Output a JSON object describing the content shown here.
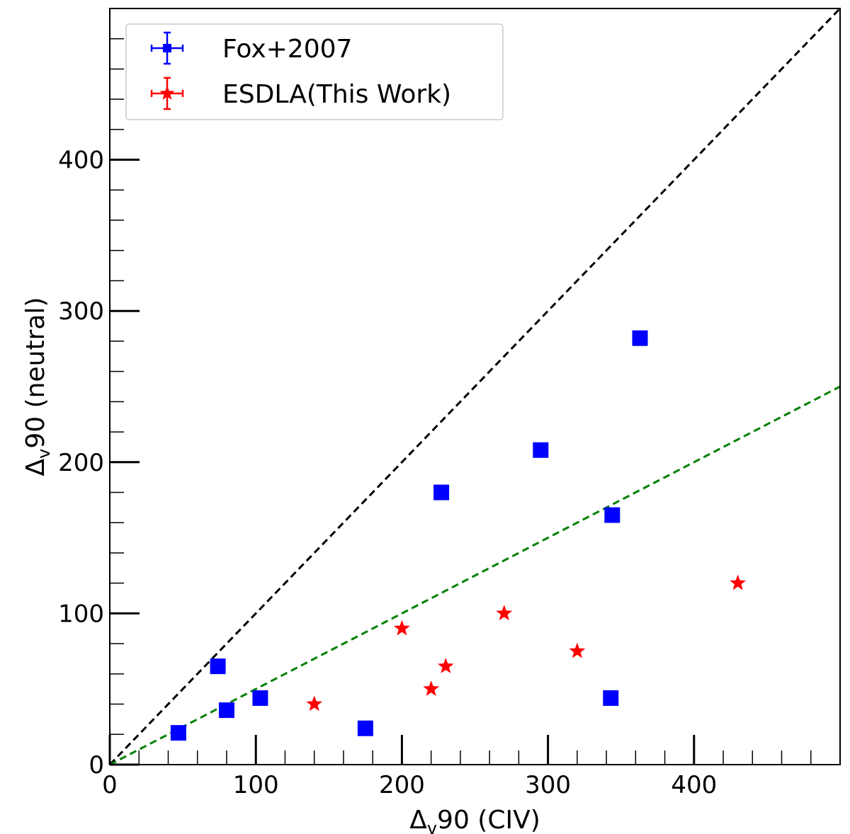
{
  "chart_data": {
    "type": "scatter",
    "xlim": [
      0,
      500
    ],
    "ylim": [
      0,
      500
    ],
    "xlabel": {
      "main": "Δ",
      "sub": "v",
      "rest": "90 (CIV)"
    },
    "ylabel": {
      "main": "Δ",
      "sub": "v",
      "rest": "90 (neutral)"
    },
    "x_ticks": [
      {
        "value": 0,
        "label": "0"
      },
      {
        "value": 100,
        "label": "100"
      },
      {
        "value": 200,
        "label": "200"
      },
      {
        "value": 300,
        "label": "300"
      },
      {
        "value": 400,
        "label": "400"
      }
    ],
    "y_ticks": [
      {
        "value": 0,
        "label": "0"
      },
      {
        "value": 100,
        "label": "100"
      },
      {
        "value": 200,
        "label": "200"
      },
      {
        "value": 300,
        "label": "300"
      },
      {
        "value": 400,
        "label": "400"
      }
    ],
    "minor_tick_step": 20,
    "grid": false,
    "legend": {
      "placement": "top-left",
      "entries": [
        {
          "label": "Fox+2007",
          "series_index": 0
        },
        {
          "label": "ESDLA(This Work)",
          "series_index": 1
        }
      ]
    },
    "series": [
      {
        "name": "Fox+2007",
        "marker": "square",
        "color": "#0000ff",
        "points": [
          {
            "x": 47,
            "y": 21
          },
          {
            "x": 74,
            "y": 65
          },
          {
            "x": 80,
            "y": 36
          },
          {
            "x": 103,
            "y": 44
          },
          {
            "x": 175,
            "y": 24
          },
          {
            "x": 227,
            "y": 180
          },
          {
            "x": 295,
            "y": 208
          },
          {
            "x": 343,
            "y": 44
          },
          {
            "x": 344,
            "y": 165
          },
          {
            "x": 363,
            "y": 282
          }
        ]
      },
      {
        "name": "ESDLA(This Work)",
        "marker": "star",
        "color": "#ff0000",
        "points": [
          {
            "x": 140,
            "y": 40
          },
          {
            "x": 200,
            "y": 90
          },
          {
            "x": 220,
            "y": 50
          },
          {
            "x": 230,
            "y": 65
          },
          {
            "x": 270,
            "y": 100
          },
          {
            "x": 320,
            "y": 75
          },
          {
            "x": 430,
            "y": 120
          }
        ]
      }
    ],
    "reference_lines": [
      {
        "slope": 1.0,
        "intercept": 0,
        "color": "#000000",
        "style": "dashed"
      },
      {
        "slope": 0.5,
        "intercept": 0,
        "color": "#008000",
        "style": "dashed"
      }
    ]
  }
}
